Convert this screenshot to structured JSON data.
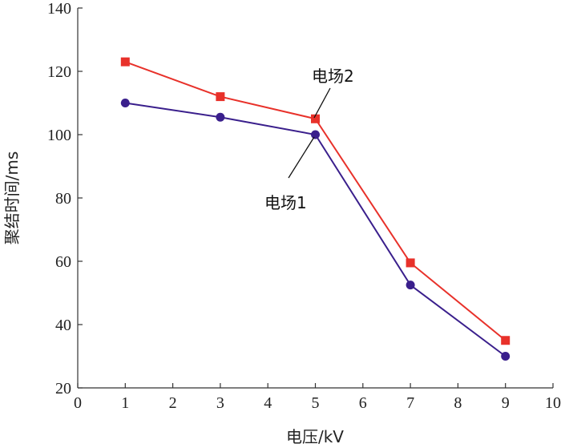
{
  "chart_data": {
    "type": "line",
    "xlabel": "电压/kV",
    "ylabel": "聚结时间/ms",
    "xlim": [
      0,
      10
    ],
    "ylim": [
      20,
      140
    ],
    "xticks": [
      "0",
      "1",
      "2",
      "3",
      "4",
      "5",
      "6",
      "7",
      "8",
      "9",
      "10"
    ],
    "yticks": [
      "20",
      "40",
      "60",
      "80",
      "100",
      "120",
      "140"
    ],
    "grid": false,
    "legend": "none",
    "series": [
      {
        "name": "电场1",
        "marker": "circle",
        "color": "#3a1f8c",
        "x": [
          1,
          3,
          5,
          7,
          9
        ],
        "y": [
          110,
          105.5,
          100,
          52.5,
          30
        ]
      },
      {
        "name": "电场2",
        "marker": "square",
        "color": "#e8312a",
        "x": [
          1,
          3,
          5,
          7,
          9
        ],
        "y": [
          123,
          112,
          105,
          59.5,
          35
        ]
      }
    ]
  }
}
